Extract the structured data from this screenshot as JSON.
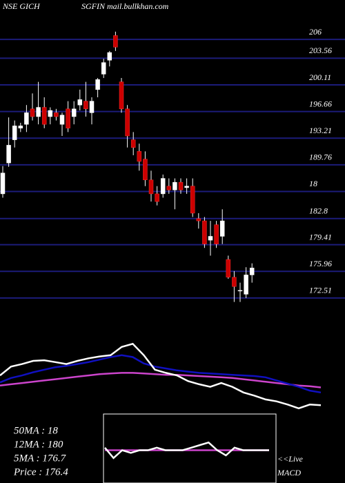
{
  "header": {
    "exchange": "NSE GICH",
    "source": "SGFIN mail.bullkhan.com"
  },
  "info": [
    "50MA : 18",
    "12MA : 180",
    "5MA : 176.7",
    "Price   : 176.4"
  ],
  "live": "<<Live",
  "macd_label": "MACD",
  "chart_data": [
    {
      "type": "candlestick",
      "ylim": [
        170,
        211.1
      ],
      "yticks": [
        206,
        203.56,
        200.11,
        196.66,
        193.21,
        189.76,
        {
          "value": 186.31,
          "label": "18"
        },
        182.8,
        179.41,
        175.96,
        172.51
      ],
      "grid": true,
      "grid_color": "#1c1c7a",
      "up_color": "#ffffff",
      "down_color": "#cc0000",
      "open": [
        186.0,
        190.0,
        193.0,
        194.5,
        195.0,
        197.0,
        196.0,
        197.2,
        196.0,
        196.5,
        195.0,
        197.0,
        196.0,
        197.5,
        198.0,
        196.5,
        199.5,
        201.5,
        203.3,
        206.5,
        200.5,
        197.0,
        193.0,
        191.5,
        190.5,
        187.8,
        186.0,
        186.0,
        187.0,
        186.5,
        187.5,
        186.8,
        187.0,
        182.8,
        182.5,
        180.0,
        182.0,
        180.5,
        177.5,
        175.2,
        173.5,
        173.0,
        175.5
      ],
      "high": [
        189.6,
        195.9,
        195.5,
        195.2,
        197.5,
        199.0,
        200.5,
        198.5,
        197.2,
        197.0,
        196.5,
        198.0,
        198.0,
        199.5,
        200.5,
        198.5,
        201.0,
        203.5,
        204.5,
        207.0,
        201.0,
        197.5,
        194.0,
        192.5,
        191.5,
        189.0,
        187.0,
        188.5,
        188.0,
        188.0,
        188.0,
        188.0,
        188.0,
        183.5,
        183.0,
        182.5,
        182.5,
        184.0,
        178.0,
        176.0,
        174.5,
        176.5,
        177.0
      ],
      "low": [
        185.5,
        189.5,
        192.0,
        194.0,
        194.0,
        195.5,
        195.0,
        194.5,
        195.0,
        195.5,
        193.5,
        194.0,
        195.0,
        196.8,
        196.0,
        195.0,
        198.5,
        201.0,
        202.5,
        204.5,
        196.5,
        192.0,
        191.0,
        189.0,
        187.0,
        185.0,
        184.5,
        185.5,
        186.0,
        184.0,
        186.0,
        186.0,
        183.0,
        181.5,
        179.0,
        178.0,
        179.0,
        179.5,
        175.0,
        172.0,
        172.0,
        172.5,
        174.5
      ],
      "close": [
        188.7,
        192.3,
        194.8,
        194.8,
        196.5,
        196.0,
        197.2,
        195.0,
        196.8,
        196.0,
        196.2,
        194.5,
        197.0,
        198.2,
        197.0,
        198.0,
        200.8,
        203.0,
        204.3,
        205.0,
        197.0,
        193.5,
        192.0,
        190.2,
        187.8,
        186.0,
        185.0,
        188.0,
        186.5,
        187.5,
        186.5,
        187.0,
        183.5,
        182.5,
        179.5,
        180.5,
        179.5,
        182.5,
        175.2,
        174.0,
        173.5,
        175.5,
        176.4
      ]
    },
    {
      "type": "line",
      "ylim": [
        -20,
        100
      ],
      "series": [
        {
          "color": "#cc44cc",
          "values": [
            25,
            27,
            29,
            31,
            33,
            35,
            37,
            39,
            41,
            43,
            44,
            45,
            45,
            44,
            43,
            42,
            42,
            41,
            40,
            39,
            38,
            37,
            35,
            33,
            31,
            29,
            27,
            25,
            24,
            22
          ]
        },
        {
          "color": "#1010c0",
          "values": [
            30,
            37,
            41,
            46,
            50,
            54,
            56,
            59,
            62,
            66,
            70,
            73,
            70,
            60,
            55,
            52,
            49,
            47,
            45,
            44,
            43,
            42,
            41,
            40,
            38,
            33,
            28,
            23,
            17,
            14
          ]
        },
        {
          "color": "#ffffff",
          "values": [
            41,
            55,
            59,
            64,
            65,
            62,
            59,
            64,
            68,
            71,
            73,
            86,
            91,
            73,
            50,
            45,
            41,
            32,
            27,
            23,
            29,
            23,
            14,
            9,
            3,
            0,
            -5,
            -11,
            -5,
            -6
          ]
        }
      ]
    },
    {
      "type": "line",
      "ylim": [
        -10,
        10
      ],
      "series": [
        {
          "color": "#cc44cc",
          "values": [
            0,
            0,
            0,
            0,
            0,
            0,
            0,
            0,
            0,
            0,
            0,
            0,
            0,
            0,
            0,
            0,
            0,
            0,
            0,
            0
          ]
        },
        {
          "color": "#ffffff",
          "values": [
            1,
            -3,
            0,
            -1,
            0,
            0,
            1,
            0,
            0,
            0,
            1,
            2,
            3,
            0,
            -2,
            1,
            0,
            0,
            0,
            0
          ]
        }
      ]
    }
  ]
}
